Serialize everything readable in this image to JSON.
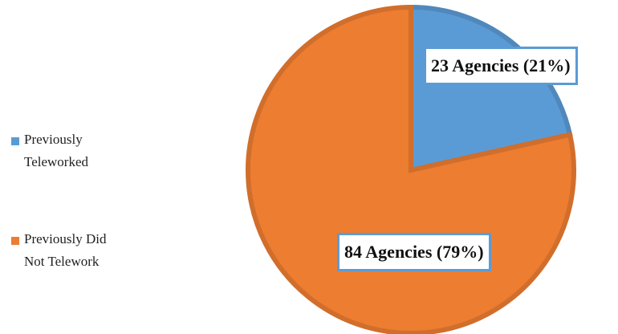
{
  "chart_data": {
    "type": "pie",
    "categories": [
      "Previously Teleworked",
      "Previously Did Not Telework"
    ],
    "values": [
      23,
      84
    ],
    "value_labels": [
      "23 Agencies (21%)",
      "84 Agencies (79%)"
    ],
    "colors": [
      "#5b9bd5",
      "#ed7d31"
    ],
    "legend": "left"
  }
}
